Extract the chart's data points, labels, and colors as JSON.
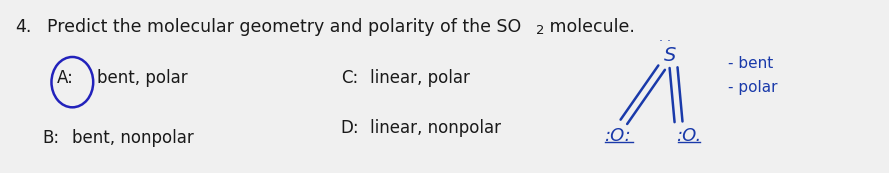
{
  "bg_color": "#f0f0f0",
  "text_color": "#1a1a1a",
  "circle_color": "#2222bb",
  "hand_color": "#1a3aaa",
  "q_num": "4.",
  "q_text1": "Predict the molecular geometry and polarity of the SO",
  "q_sub": "2",
  "q_text2": " molecule.",
  "opt_A": "A:",
  "opt_A_text": "bent, polar",
  "opt_B": "B:",
  "opt_B_text": "bent, nonpolar",
  "opt_C": "C:",
  "opt_C_text": "linear, polar",
  "opt_D": "D:",
  "opt_D_text": "linear, nonpolar",
  "note1": "- bent",
  "note2": "- polar",
  "fs_q": 12.5,
  "fs_opt": 12,
  "fs_hand": 13
}
